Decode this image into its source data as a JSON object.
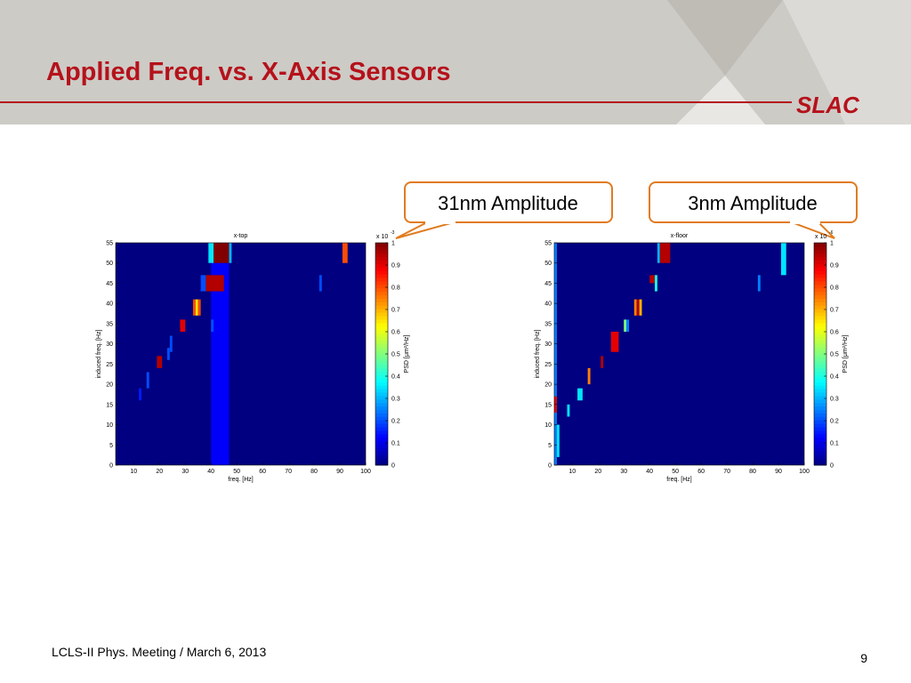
{
  "header": {
    "title": "Applied Freq. vs. X-Axis Sensors",
    "logo": "SLAC"
  },
  "callouts": [
    "31nm Amplitude",
    "3nm Amplitude"
  ],
  "footer": {
    "text": "LCLS-II Phys. Meeting / March 6, 2013",
    "page": "9"
  },
  "chart_data": [
    {
      "type": "heatmap",
      "title": "x-top",
      "x_label": "freq. [Hz]",
      "y_label": "induced freq. [Hz]",
      "xlim": [
        3,
        100
      ],
      "xticks": [
        10,
        20,
        30,
        40,
        50,
        60,
        70,
        80,
        90,
        100
      ],
      "ylim": [
        0,
        55
      ],
      "yticks": [
        0,
        5,
        10,
        15,
        20,
        25,
        30,
        35,
        40,
        45,
        50,
        55
      ],
      "colorbar_label": "PSD [μm²/Hz]",
      "colorbar_scale": "x 10",
      "colorbar_exponent": "-3",
      "clim": [
        0,
        1
      ],
      "cticks": [
        0,
        0.1,
        0.2,
        0.3,
        0.4,
        0.5,
        0.6,
        0.7,
        0.8,
        0.9,
        1
      ],
      "cells": [
        {
          "x0": 40,
          "x1": 47,
          "y0": 0,
          "y1": 55,
          "value": 0.12
        },
        {
          "x0": 39,
          "x1": 41,
          "y0": 50,
          "y1": 55,
          "value": 0.35
        },
        {
          "x0": 41,
          "x1": 47,
          "y0": 50,
          "y1": 55,
          "value": 1
        },
        {
          "x0": 47,
          "x1": 48,
          "y0": 50,
          "y1": 55,
          "value": 0.3
        },
        {
          "x0": 91,
          "x1": 93,
          "y0": 50,
          "y1": 55,
          "value": 0.8
        },
        {
          "x0": 36,
          "x1": 38,
          "y0": 43,
          "y1": 47,
          "value": 0.2
        },
        {
          "x0": 38,
          "x1": 45,
          "y0": 43,
          "y1": 47,
          "value": 0.95
        },
        {
          "x0": 82,
          "x1": 83,
          "y0": 43,
          "y1": 47,
          "value": 0.2
        },
        {
          "x0": 33,
          "x1": 34,
          "y0": 37,
          "y1": 41,
          "value": 0.8
        },
        {
          "x0": 34,
          "x1": 35,
          "y0": 37,
          "y1": 41,
          "value": 0.65
        },
        {
          "x0": 35,
          "x1": 36,
          "y0": 37,
          "y1": 41,
          "value": 0.8
        },
        {
          "x0": 28,
          "x1": 30,
          "y0": 33,
          "y1": 36,
          "value": 0.9
        },
        {
          "x0": 40,
          "x1": 41,
          "y0": 33,
          "y1": 36,
          "value": 0.2
        },
        {
          "x0": 24,
          "x1": 25,
          "y0": 28,
          "y1": 32,
          "value": 0.2
        },
        {
          "x0": 23,
          "x1": 24,
          "y0": 26,
          "y1": 29,
          "value": 0.2
        },
        {
          "x0": 19,
          "x1": 21,
          "y0": 24,
          "y1": 27,
          "value": 0.95
        },
        {
          "x0": 15,
          "x1": 16,
          "y0": 19,
          "y1": 23,
          "value": 0.2
        },
        {
          "x0": 12,
          "x1": 13,
          "y0": 16,
          "y1": 19,
          "value": 0.15
        }
      ]
    },
    {
      "type": "heatmap",
      "title": "x-floor",
      "x_label": "freq. [Hz]",
      "y_label": "induced freq. [Hz]",
      "xlim": [
        3,
        100
      ],
      "xticks": [
        10,
        20,
        30,
        40,
        50,
        60,
        70,
        80,
        90,
        100
      ],
      "ylim": [
        0,
        55
      ],
      "yticks": [
        0,
        5,
        10,
        15,
        20,
        25,
        30,
        35,
        40,
        45,
        50,
        55
      ],
      "colorbar_label": "PSD [μm²/Hz]",
      "colorbar_scale": "x 10",
      "colorbar_exponent": "-6",
      "clim": [
        0,
        1
      ],
      "cticks": [
        0,
        0.1,
        0.2,
        0.3,
        0.4,
        0.5,
        0.6,
        0.7,
        0.8,
        0.9,
        1
      ],
      "cells": [
        {
          "x0": 3,
          "x1": 4,
          "y0": 0,
          "y1": 55,
          "value": 0.25
        },
        {
          "x0": 4,
          "x1": 5,
          "y0": 2,
          "y1": 10,
          "value": 0.35
        },
        {
          "x0": 3,
          "x1": 4,
          "y0": 13,
          "y1": 17,
          "value": 0.9
        },
        {
          "x0": 43,
          "x1": 44,
          "y0": 50,
          "y1": 55,
          "value": 0.3
        },
        {
          "x0": 44,
          "x1": 48,
          "y0": 50,
          "y1": 55,
          "value": 0.95
        },
        {
          "x0": 91,
          "x1": 93,
          "y0": 47,
          "y1": 55,
          "value": 0.35
        },
        {
          "x0": 40,
          "x1": 42,
          "y0": 45,
          "y1": 47,
          "value": 0.95
        },
        {
          "x0": 42,
          "x1": 43,
          "y0": 43,
          "y1": 47,
          "value": 0.4
        },
        {
          "x0": 82,
          "x1": 83,
          "y0": 43,
          "y1": 47,
          "value": 0.25
        },
        {
          "x0": 34,
          "x1": 35,
          "y0": 37,
          "y1": 41,
          "value": 0.75
        },
        {
          "x0": 35,
          "x1": 36,
          "y0": 37,
          "y1": 41,
          "value": 0.95
        },
        {
          "x0": 36,
          "x1": 37,
          "y0": 37,
          "y1": 41,
          "value": 0.7
        },
        {
          "x0": 30,
          "x1": 31,
          "y0": 33,
          "y1": 36,
          "value": 0.5
        },
        {
          "x0": 31,
          "x1": 32,
          "y0": 33,
          "y1": 36,
          "value": 0.25
        },
        {
          "x0": 25,
          "x1": 28,
          "y0": 28,
          "y1": 33,
          "value": 0.9
        },
        {
          "x0": 21,
          "x1": 22,
          "y0": 24,
          "y1": 27,
          "value": 0.95
        },
        {
          "x0": 16,
          "x1": 17,
          "y0": 20,
          "y1": 24,
          "value": 0.75
        },
        {
          "x0": 12,
          "x1": 14,
          "y0": 16,
          "y1": 19,
          "value": 0.35
        },
        {
          "x0": 8,
          "x1": 9,
          "y0": 12,
          "y1": 15,
          "value": 0.35
        }
      ]
    }
  ]
}
